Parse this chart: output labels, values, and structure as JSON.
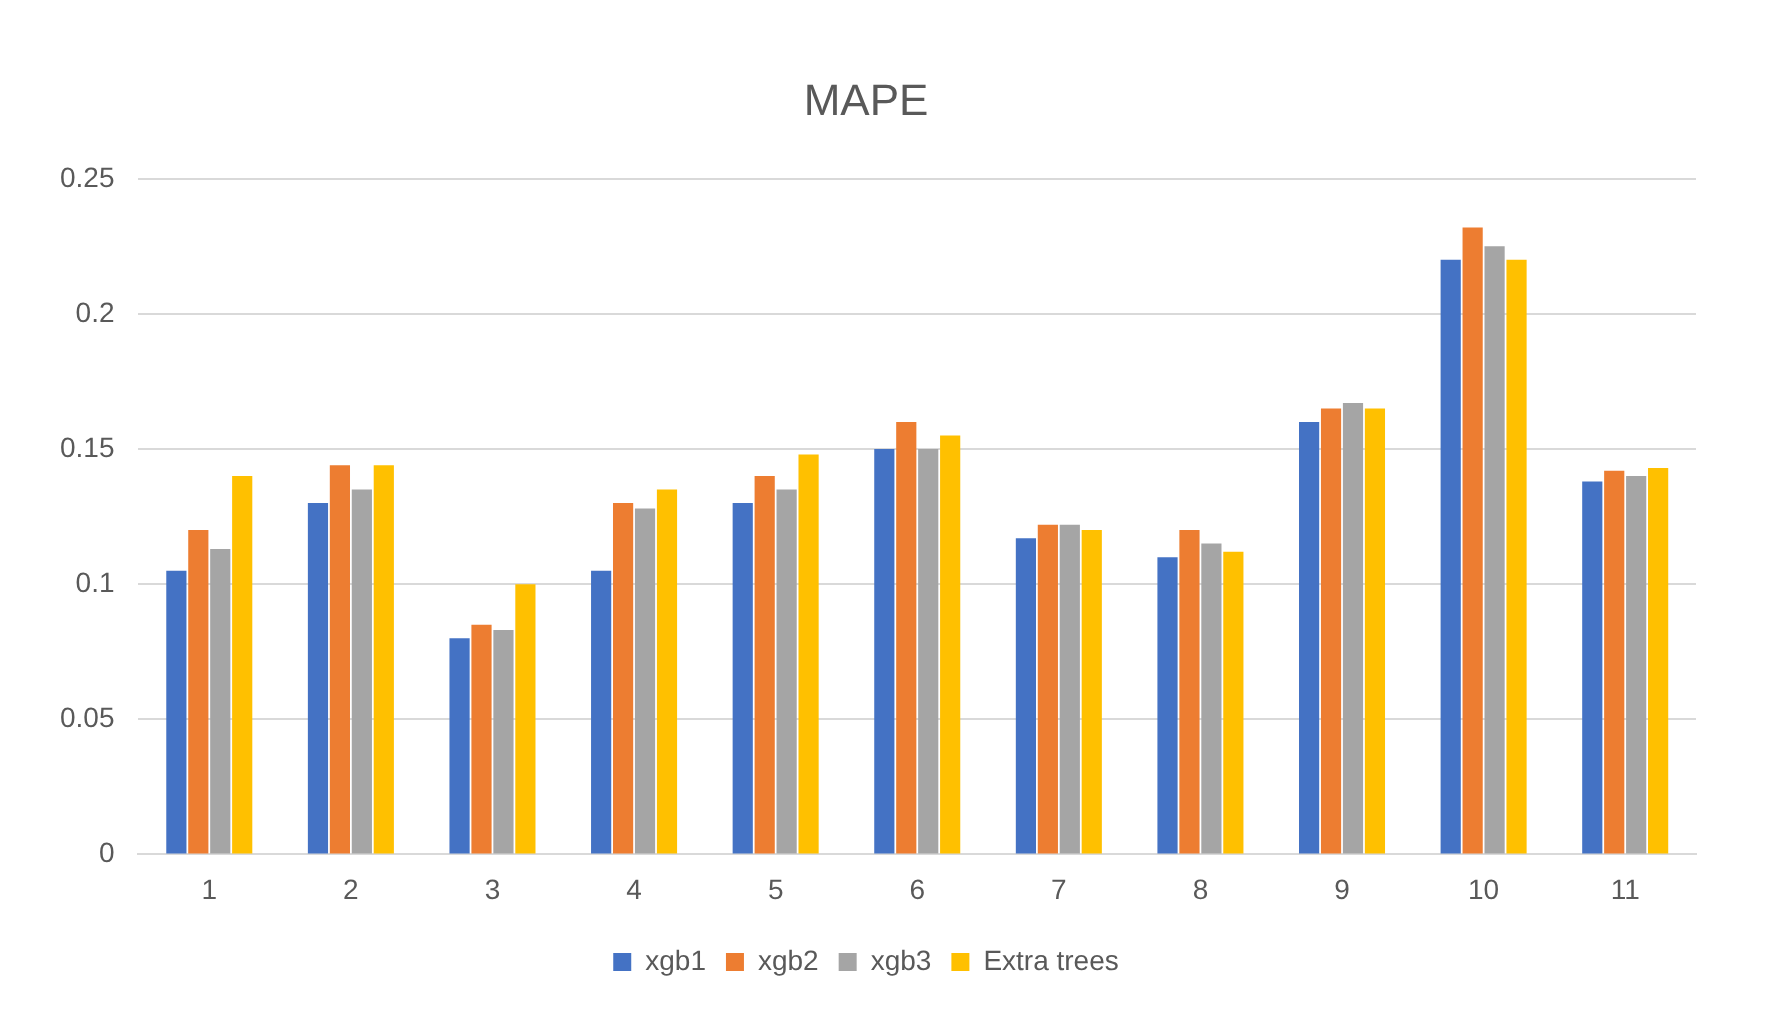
{
  "chart_data": {
    "type": "bar",
    "title": "MAPE",
    "categories": [
      "1",
      "2",
      "3",
      "4",
      "5",
      "6",
      "7",
      "8",
      "9",
      "10",
      "11"
    ],
    "series": [
      {
        "name": "xgb1",
        "color": "#4472c4",
        "values": [
          0.105,
          0.13,
          0.08,
          0.105,
          0.13,
          0.15,
          0.117,
          0.11,
          0.16,
          0.22,
          0.138
        ]
      },
      {
        "name": "xgb2",
        "color": "#ed7d31",
        "values": [
          0.12,
          0.144,
          0.085,
          0.13,
          0.14,
          0.16,
          0.122,
          0.12,
          0.165,
          0.232,
          0.142
        ]
      },
      {
        "name": "xgb3",
        "color": "#a5a5a5",
        "values": [
          0.113,
          0.135,
          0.083,
          0.128,
          0.135,
          0.15,
          0.122,
          0.115,
          0.167,
          0.225,
          0.14
        ]
      },
      {
        "name": "Extra trees",
        "color": "#ffc000",
        "values": [
          0.14,
          0.144,
          0.1,
          0.135,
          0.148,
          0.155,
          0.12,
          0.112,
          0.165,
          0.22,
          0.143
        ]
      }
    ],
    "ylim": [
      0,
      0.25
    ],
    "yticks": [
      0,
      0.05,
      0.1,
      0.15,
      0.2,
      0.25
    ],
    "grid": "y",
    "legend": "bottom"
  }
}
